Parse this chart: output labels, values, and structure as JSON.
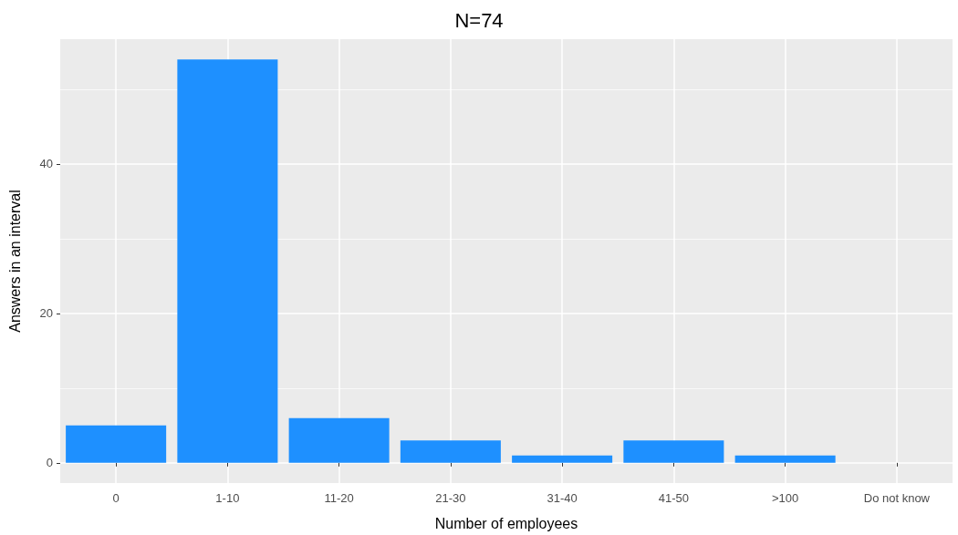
{
  "chart_data": {
    "type": "bar",
    "title": "N=74",
    "xlabel": "Number of employees",
    "ylabel": "Answers in an interval",
    "categories": [
      "0",
      "1-10",
      "11-20",
      "21-30",
      "31-40",
      "41-50",
      ">100",
      "Do not know"
    ],
    "values": [
      5,
      54,
      6,
      3,
      1,
      3,
      1,
      0
    ],
    "color": "#1e90ff",
    "ylim": [
      -2.7,
      56.7
    ],
    "yticks": [
      0,
      20,
      40
    ],
    "grid": true
  }
}
